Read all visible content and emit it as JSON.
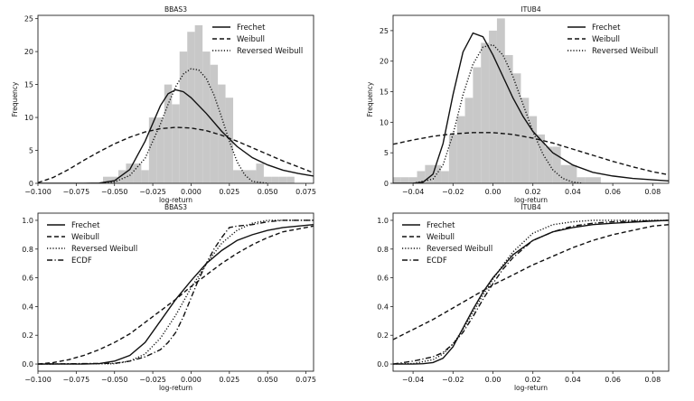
{
  "chart_data": [
    {
      "type": "histogram+line",
      "id": "p1",
      "title": "BBAS3",
      "xlabel": "log-return",
      "ylabel": "Frequency",
      "xlim": [
        -0.1,
        0.08
      ],
      "ylim": [
        0,
        25.5
      ],
      "xticks": [
        -0.1,
        -0.075,
        -0.05,
        -0.025,
        0.0,
        0.025,
        0.05,
        0.075
      ],
      "xtick_labels": [
        "−0.100",
        "−0.075",
        "−0.050",
        "−0.025",
        "0.000",
        "0.025",
        "0.050",
        "0.075"
      ],
      "yticks": [
        0,
        5,
        10,
        15,
        20,
        25
      ],
      "ytick_labels": [
        "0",
        "5",
        "10",
        "15",
        "20",
        "25"
      ],
      "legend_position": "top-right",
      "histogram": {
        "bin_edges": [
          -0.0575,
          -0.0525,
          -0.0475,
          -0.0425,
          -0.0375,
          -0.0325,
          -0.0275,
          -0.0225,
          -0.0175,
          -0.0125,
          -0.0075,
          -0.0025,
          0.0025,
          0.0075,
          0.0125,
          0.0175,
          0.0225,
          0.0275,
          0.0325,
          0.0375,
          0.0425,
          0.0475,
          0.0525,
          0.0575,
          0.0625,
          0.0675
        ],
        "counts": [
          1,
          1,
          2,
          3,
          3,
          2,
          10,
          10,
          15,
          12,
          20,
          23,
          24,
          20,
          18,
          15,
          13,
          2,
          2,
          2,
          3,
          1,
          1,
          1,
          1
        ]
      },
      "series": [
        {
          "name": "Frechet",
          "style": "solid",
          "x": [
            -0.1,
            -0.09,
            -0.08,
            -0.07,
            -0.06,
            -0.05,
            -0.04,
            -0.03,
            -0.02,
            -0.015,
            -0.01,
            -0.005,
            0.0,
            0.01,
            0.02,
            0.03,
            0.04,
            0.05,
            0.06,
            0.07,
            0.08
          ],
          "y": [
            0,
            0,
            0,
            0,
            0.05,
            0.4,
            2.1,
            6.4,
            11.8,
            13.6,
            14.2,
            13.9,
            13.0,
            10.6,
            7.9,
            5.6,
            3.9,
            2.8,
            2.0,
            1.5,
            1.1
          ]
        },
        {
          "name": "Weibull",
          "style": "dashed",
          "x": [
            -0.1,
            -0.09,
            -0.08,
            -0.07,
            -0.06,
            -0.05,
            -0.04,
            -0.03,
            -0.02,
            -0.01,
            0.0,
            0.01,
            0.02,
            0.03,
            0.04,
            0.05,
            0.06,
            0.07,
            0.08
          ],
          "y": [
            0.1,
            0.9,
            2.1,
            3.5,
            4.8,
            6.0,
            7.0,
            7.8,
            8.3,
            8.5,
            8.4,
            8.0,
            7.3,
            6.4,
            5.4,
            4.4,
            3.4,
            2.5,
            1.6
          ]
        },
        {
          "name": "Reversed Weibull",
          "style": "dotted",
          "x": [
            -0.06,
            -0.05,
            -0.04,
            -0.03,
            -0.02,
            -0.015,
            -0.01,
            -0.005,
            0.0,
            0.005,
            0.01,
            0.015,
            0.02,
            0.025,
            0.03,
            0.035,
            0.04,
            0.05
          ],
          "y": [
            0,
            0.2,
            1.2,
            3.8,
            9.0,
            12.0,
            14.7,
            16.6,
            17.4,
            17.2,
            15.9,
            13.4,
            10.0,
            6.4,
            3.3,
            1.3,
            0.3,
            0
          ]
        }
      ]
    },
    {
      "type": "histogram+line",
      "id": "p2",
      "title": "ITUB4",
      "xlabel": "log-return",
      "ylabel": "Frequency",
      "xlim": [
        -0.05,
        0.088
      ],
      "ylim": [
        0,
        27.5
      ],
      "xticks": [
        -0.04,
        -0.02,
        0.0,
        0.02,
        0.04,
        0.06,
        0.08
      ],
      "xtick_labels": [
        "−0.04",
        "−0.02",
        "0.00",
        "0.02",
        "0.04",
        "0.06",
        "0.08"
      ],
      "yticks": [
        0,
        5,
        10,
        15,
        20,
        25
      ],
      "ytick_labels": [
        "0",
        "5",
        "10",
        "15",
        "20",
        "25"
      ],
      "legend_position": "top-right",
      "histogram": {
        "bin_edges": [
          -0.05,
          -0.046,
          -0.042,
          -0.038,
          -0.034,
          -0.03,
          -0.026,
          -0.022,
          -0.018,
          -0.014,
          -0.01,
          -0.006,
          -0.002,
          0.002,
          0.006,
          0.01,
          0.014,
          0.018,
          0.022,
          0.026,
          0.03,
          0.034,
          0.038,
          0.042,
          0.046,
          0.05,
          0.054
        ],
        "counts": [
          1,
          1,
          1,
          2,
          3,
          3,
          2,
          8,
          11,
          14,
          19,
          23,
          25,
          27,
          21,
          18,
          14,
          11,
          8,
          6,
          6,
          3,
          3,
          1,
          1,
          1
        ]
      },
      "series": [
        {
          "name": "Frechet",
          "style": "solid",
          "x": [
            -0.05,
            -0.04,
            -0.035,
            -0.03,
            -0.025,
            -0.02,
            -0.015,
            -0.01,
            -0.005,
            0.0,
            0.005,
            0.01,
            0.015,
            0.02,
            0.03,
            0.04,
            0.05,
            0.06,
            0.07,
            0.088
          ],
          "y": [
            0,
            0,
            0.2,
            1.5,
            6.5,
            14.5,
            21.5,
            24.6,
            24.0,
            21.0,
            17.5,
            14.0,
            11.0,
            8.5,
            5.0,
            3.0,
            1.8,
            1.2,
            0.8,
            0.4
          ]
        },
        {
          "name": "Weibull",
          "style": "dashed",
          "x": [
            -0.05,
            -0.04,
            -0.03,
            -0.02,
            -0.01,
            0.0,
            0.01,
            0.02,
            0.03,
            0.04,
            0.05,
            0.06,
            0.07,
            0.08,
            0.088
          ],
          "y": [
            6.4,
            7.1,
            7.7,
            8.1,
            8.3,
            8.3,
            8.0,
            7.4,
            6.6,
            5.6,
            4.6,
            3.6,
            2.7,
            1.9,
            1.4
          ]
        },
        {
          "name": "Reversed Weibull",
          "style": "dotted",
          "x": [
            -0.04,
            -0.03,
            -0.025,
            -0.02,
            -0.015,
            -0.01,
            -0.005,
            0.0,
            0.005,
            0.01,
            0.015,
            0.02,
            0.025,
            0.03,
            0.035,
            0.04,
            0.045
          ],
          "y": [
            0,
            0.7,
            3.0,
            8.0,
            14.5,
            19.5,
            22.3,
            22.7,
            21.0,
            17.5,
            13.0,
            8.5,
            4.8,
            2.2,
            0.8,
            0.2,
            0
          ]
        }
      ]
    },
    {
      "type": "line",
      "id": "p3",
      "title": "BBAS3",
      "xlabel": "log-return",
      "ylabel": "",
      "xlim": [
        -0.1,
        0.08
      ],
      "ylim": [
        -0.05,
        1.05
      ],
      "xticks": [
        -0.1,
        -0.075,
        -0.05,
        -0.025,
        0.0,
        0.025,
        0.05,
        0.075
      ],
      "xtick_labels": [
        "−0.100",
        "−0.075",
        "−0.050",
        "−0.025",
        "0.000",
        "0.025",
        "0.050",
        "0.075"
      ],
      "yticks": [
        0,
        0.2,
        0.4,
        0.6,
        0.8,
        1.0
      ],
      "ytick_labels": [
        "0.0",
        "0.2",
        "0.4",
        "0.6",
        "0.8",
        "1.0"
      ],
      "legend_position": "top-left",
      "series": [
        {
          "name": "Frechet",
          "style": "solid",
          "x": [
            -0.1,
            -0.07,
            -0.06,
            -0.05,
            -0.04,
            -0.03,
            -0.02,
            -0.01,
            0.0,
            0.01,
            0.02,
            0.03,
            0.04,
            0.05,
            0.06,
            0.08
          ],
          "y": [
            0,
            0,
            0.003,
            0.02,
            0.06,
            0.15,
            0.3,
            0.45,
            0.58,
            0.7,
            0.79,
            0.86,
            0.9,
            0.93,
            0.95,
            0.97
          ]
        },
        {
          "name": "Weibull",
          "style": "dashed",
          "x": [
            -0.1,
            -0.09,
            -0.08,
            -0.07,
            -0.06,
            -0.05,
            -0.04,
            -0.03,
            -0.02,
            -0.01,
            0.0,
            0.01,
            0.02,
            0.03,
            0.04,
            0.05,
            0.06,
            0.08
          ],
          "y": [
            0.0,
            0.01,
            0.03,
            0.06,
            0.1,
            0.15,
            0.21,
            0.29,
            0.37,
            0.45,
            0.54,
            0.62,
            0.7,
            0.77,
            0.83,
            0.88,
            0.92,
            0.96
          ]
        },
        {
          "name": "Reversed Weibull",
          "style": "dotted",
          "x": [
            -0.1,
            -0.05,
            -0.04,
            -0.03,
            -0.02,
            -0.01,
            0.0,
            0.01,
            0.02,
            0.03,
            0.04,
            0.05,
            0.08
          ],
          "y": [
            0,
            0.002,
            0.02,
            0.07,
            0.18,
            0.34,
            0.53,
            0.7,
            0.84,
            0.93,
            0.98,
            1.0,
            1.0
          ]
        },
        {
          "name": "ECDF",
          "style": "dashdot",
          "x": [
            -0.1,
            -0.05,
            -0.04,
            -0.03,
            -0.02,
            -0.015,
            -0.01,
            -0.005,
            0.0,
            0.005,
            0.01,
            0.015,
            0.02,
            0.025,
            0.03,
            0.04,
            0.05,
            0.06,
            0.08
          ],
          "y": [
            0,
            0.005,
            0.02,
            0.05,
            0.1,
            0.15,
            0.22,
            0.33,
            0.46,
            0.59,
            0.7,
            0.8,
            0.88,
            0.95,
            0.96,
            0.97,
            0.99,
            1.0,
            1.0
          ]
        }
      ]
    },
    {
      "type": "line",
      "id": "p4",
      "title": "ITUB4",
      "xlabel": "log-return",
      "ylabel": "",
      "xlim": [
        -0.05,
        0.088
      ],
      "ylim": [
        -0.05,
        1.05
      ],
      "xticks": [
        -0.04,
        -0.02,
        0.0,
        0.02,
        0.04,
        0.06,
        0.08
      ],
      "xtick_labels": [
        "−0.04",
        "−0.02",
        "0.00",
        "0.02",
        "0.04",
        "0.06",
        "0.08"
      ],
      "yticks": [
        0,
        0.2,
        0.4,
        0.6,
        0.8,
        1.0
      ],
      "ytick_labels": [
        "0.0",
        "0.2",
        "0.4",
        "0.6",
        "0.8",
        "1.0"
      ],
      "legend_position": "top-left",
      "series": [
        {
          "name": "Frechet",
          "style": "solid",
          "x": [
            -0.05,
            -0.04,
            -0.035,
            -0.03,
            -0.025,
            -0.02,
            -0.015,
            -0.01,
            -0.005,
            0.0,
            0.01,
            0.02,
            0.03,
            0.04,
            0.05,
            0.06,
            0.08,
            0.088
          ],
          "y": [
            0,
            0,
            0.002,
            0.01,
            0.04,
            0.12,
            0.25,
            0.38,
            0.5,
            0.6,
            0.76,
            0.86,
            0.92,
            0.95,
            0.97,
            0.98,
            0.995,
            1.0
          ]
        },
        {
          "name": "Weibull",
          "style": "dashed",
          "x": [
            -0.05,
            -0.04,
            -0.03,
            -0.02,
            -0.01,
            0.0,
            0.01,
            0.02,
            0.03,
            0.04,
            0.05,
            0.06,
            0.07,
            0.08,
            0.088
          ],
          "y": [
            0.17,
            0.24,
            0.31,
            0.39,
            0.47,
            0.55,
            0.62,
            0.69,
            0.75,
            0.81,
            0.86,
            0.9,
            0.93,
            0.96,
            0.97
          ]
        },
        {
          "name": "Reversed Weibull",
          "style": "dotted",
          "x": [
            -0.05,
            -0.04,
            -0.03,
            -0.025,
            -0.02,
            -0.015,
            -0.01,
            -0.005,
            0.0,
            0.005,
            0.01,
            0.02,
            0.03,
            0.04,
            0.05,
            0.088
          ],
          "y": [
            0,
            0.003,
            0.03,
            0.07,
            0.14,
            0.24,
            0.36,
            0.48,
            0.59,
            0.69,
            0.78,
            0.91,
            0.97,
            0.99,
            1.0,
            1.0
          ]
        },
        {
          "name": "ECDF",
          "style": "dashdot",
          "x": [
            -0.05,
            -0.04,
            -0.03,
            -0.025,
            -0.02,
            -0.015,
            -0.01,
            -0.005,
            0.0,
            0.005,
            0.01,
            0.015,
            0.02,
            0.03,
            0.04,
            0.05,
            0.06,
            0.088
          ],
          "y": [
            0,
            0.02,
            0.05,
            0.08,
            0.14,
            0.22,
            0.33,
            0.45,
            0.56,
            0.66,
            0.74,
            0.8,
            0.86,
            0.92,
            0.96,
            0.98,
            0.99,
            1.0
          ]
        }
      ]
    }
  ]
}
